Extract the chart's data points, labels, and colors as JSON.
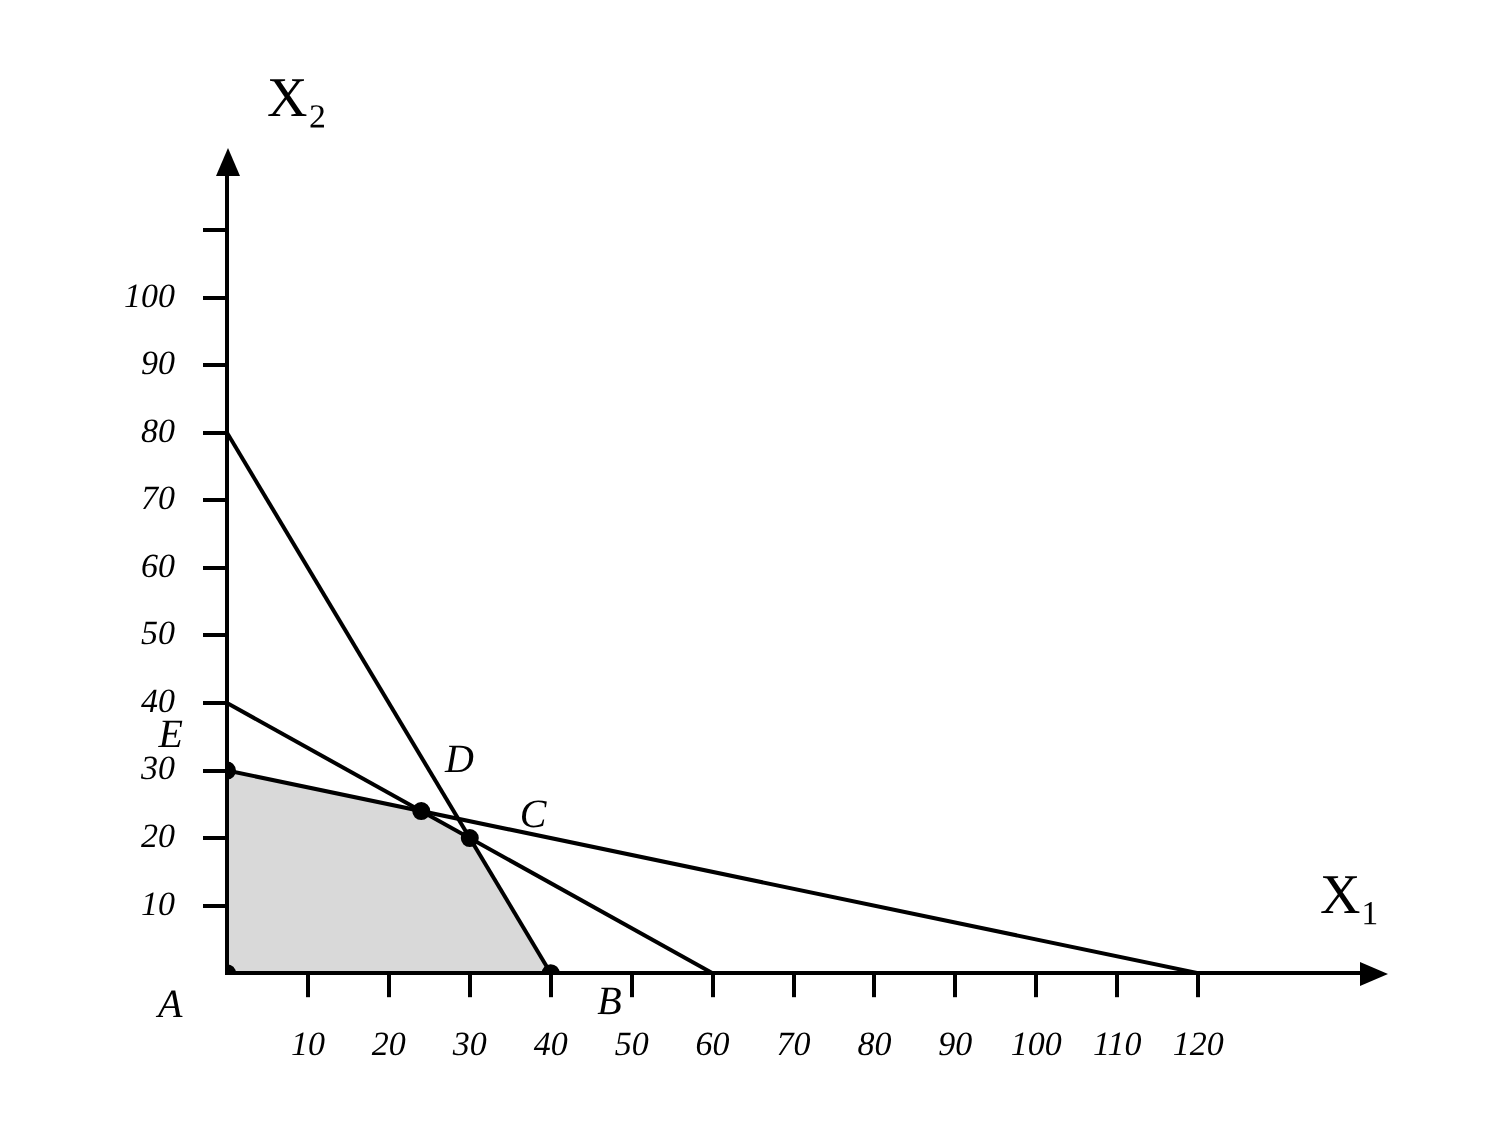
{
  "chart_data": {
    "type": "line",
    "xlabel": "X₁",
    "ylabel": "X₂",
    "xlim": [
      0,
      140
    ],
    "ylim": [
      0,
      118
    ],
    "xticks": [
      10,
      20,
      30,
      40,
      50,
      60,
      70,
      80,
      90,
      100,
      110,
      120
    ],
    "yticks": [
      10,
      20,
      30,
      40,
      50,
      60,
      70,
      80,
      90,
      100,
      {
        "value": 110,
        "label": null
      }
    ],
    "grid": false,
    "legend": false,
    "series": [
      {
        "color": "#000000",
        "x": [
          0,
          40
        ],
        "values": [
          80,
          0
        ]
      },
      {
        "color": "#000000",
        "x": [
          0,
          60
        ],
        "values": [
          40,
          0
        ]
      },
      {
        "color": "#000000",
        "x": [
          0,
          120
        ],
        "values": [
          30,
          0
        ]
      },
      {
        "type": "area",
        "color": "#000000",
        "x": [
          0,
          0,
          24,
          30,
          40
        ],
        "values": [
          0,
          30,
          24,
          20,
          0
        ]
      },
      {
        "type": "scatter",
        "color": "#000000",
        "marker": "circle",
        "x": [
          0,
          0,
          24,
          30,
          40
        ],
        "values": [
          0,
          30,
          24,
          20,
          0
        ]
      }
    ],
    "annotations": [
      {
        "text": "A",
        "x": 0,
        "y": 0
      },
      {
        "text": "B",
        "x": 40,
        "y": 0
      },
      {
        "text": "C",
        "x": 30,
        "y": 20
      },
      {
        "text": "D",
        "x": 24,
        "y": 24
      },
      {
        "text": "E",
        "x": 0,
        "y": 30
      }
    ]
  }
}
